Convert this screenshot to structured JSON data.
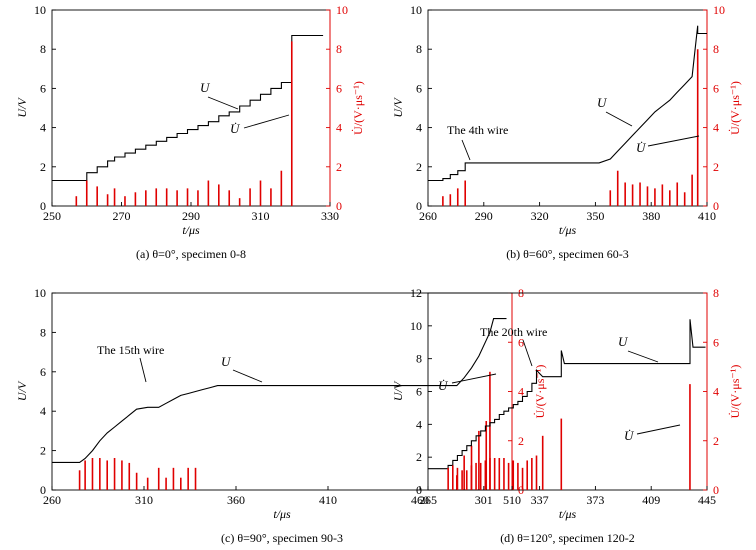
{
  "colors": {
    "voltage": "#000000",
    "rate": "#e00000"
  },
  "chart_data": [
    {
      "type": "line",
      "caption": "(a) θ=0°, specimen 0-8",
      "xlabel": "t/μs",
      "ylabel": "U/V",
      "ylabel2": "U̇/(V·μs⁻¹)",
      "xlim": [
        250,
        330
      ],
      "ylim": [
        0,
        10
      ],
      "y2lim": [
        0,
        10
      ],
      "xticks": [
        "250",
        "270",
        "290",
        "310",
        "330"
      ],
      "yticks": [
        "0",
        "2",
        "4",
        "6",
        "8",
        "10"
      ],
      "y2ticks": [
        "0",
        "2",
        "4",
        "6",
        "8",
        "10"
      ],
      "series": [
        {
          "name": "U",
          "axis": "left",
          "x": [
            250,
            260,
            260,
            263,
            263,
            266,
            266,
            268,
            268,
            271,
            271,
            274,
            274,
            277,
            277,
            280,
            280,
            283,
            283,
            286,
            286,
            289,
            289,
            292,
            292,
            295,
            295,
            298,
            298,
            301,
            301,
            304,
            304,
            307,
            307,
            310,
            310,
            313,
            313,
            316,
            316,
            319,
            319,
            328
          ],
          "y": [
            1.3,
            1.3,
            1.7,
            1.7,
            2.0,
            2.0,
            2.3,
            2.3,
            2.5,
            2.5,
            2.7,
            2.7,
            2.9,
            2.9,
            3.1,
            3.1,
            3.3,
            3.3,
            3.5,
            3.5,
            3.7,
            3.7,
            3.9,
            3.9,
            4.1,
            4.1,
            4.3,
            4.3,
            4.6,
            4.6,
            4.8,
            4.8,
            5.1,
            5.1,
            5.4,
            5.4,
            5.7,
            5.7,
            6.0,
            6.0,
            6.3,
            6.3,
            8.7,
            8.7
          ]
        },
        {
          "name": "U̇",
          "axis": "right",
          "x": [
            257,
            260,
            263,
            266,
            268,
            271,
            274,
            277,
            280,
            283,
            286,
            289,
            292,
            295,
            298,
            301,
            304,
            307,
            310,
            313,
            316,
            319
          ],
          "y": [
            0.5,
            1.3,
            1.0,
            0.6,
            0.9,
            0.5,
            0.7,
            0.8,
            0.9,
            0.9,
            0.8,
            0.9,
            0.8,
            1.3,
            1.1,
            0.8,
            0.4,
            0.9,
            1.3,
            0.9,
            1.8,
            8.4
          ]
        }
      ],
      "annotations": [
        {
          "label": "U",
          "italic": true
        },
        {
          "label": "U̇",
          "italic": true
        }
      ]
    },
    {
      "type": "line",
      "caption": "(b) θ=60°, specimen 60-3",
      "xlabel": "t/μs",
      "ylabel": "U/V",
      "ylabel2": "U̇/(V·μs⁻¹)",
      "xlim": [
        260,
        410
      ],
      "ylim": [
        0,
        10
      ],
      "y2lim": [
        0,
        10
      ],
      "xticks": [
        "260",
        "290",
        "320",
        "350",
        "380",
        "410"
      ],
      "yticks": [
        "0",
        "2",
        "4",
        "6",
        "8",
        "10"
      ],
      "y2ticks": [
        "0",
        "2",
        "4",
        "6",
        "8",
        "10"
      ],
      "series": [
        {
          "name": "U",
          "axis": "left",
          "x": [
            260,
            268,
            268,
            272,
            272,
            276,
            276,
            280,
            280,
            302,
            352,
            358,
            358,
            362,
            362,
            366,
            366,
            370,
            370,
            374,
            374,
            378,
            378,
            382,
            382,
            386,
            386,
            390,
            390,
            394,
            394,
            398,
            398,
            402,
            402,
            405,
            405,
            410
          ],
          "y": [
            1.3,
            1.3,
            1.4,
            1.4,
            1.6,
            1.6,
            1.8,
            1.8,
            2.2,
            2.2,
            2.2,
            2.4,
            2.4,
            2.8,
            2.8,
            3.2,
            3.2,
            3.6,
            3.6,
            4.0,
            4.0,
            4.4,
            4.4,
            4.8,
            4.8,
            5.1,
            5.1,
            5.4,
            5.4,
            5.8,
            5.8,
            6.2,
            6.2,
            6.6,
            6.6,
            9.2,
            8.8,
            8.8
          ]
        },
        {
          "name": "U̇",
          "axis": "right",
          "x": [
            268,
            272,
            276,
            280,
            358,
            362,
            366,
            370,
            374,
            378,
            382,
            386,
            390,
            394,
            398,
            402,
            405
          ],
          "y": [
            0.5,
            0.6,
            0.9,
            1.3,
            0.8,
            1.8,
            1.2,
            1.1,
            1.2,
            1.0,
            0.9,
            1.1,
            0.8,
            1.2,
            0.7,
            1.6,
            8.0
          ]
        }
      ],
      "annotations": [
        {
          "label": "The 4th wire",
          "italic": false
        },
        {
          "label": "U",
          "italic": true
        },
        {
          "label": "U̇",
          "italic": true
        }
      ]
    },
    {
      "type": "line",
      "caption": "(c) θ=90°, specimen 90-3",
      "xlabel": "t/μs",
      "ylabel": "U/V",
      "ylabel2": "U̇/(V·μs⁻¹)",
      "xlim": [
        260,
        510
      ],
      "ylim": [
        0,
        10
      ],
      "y2lim": [
        0,
        8
      ],
      "xticks": [
        "260",
        "310",
        "360",
        "410",
        "460",
        "510"
      ],
      "yticks": [
        "0",
        "2",
        "4",
        "6",
        "8",
        "10"
      ],
      "y2ticks": [
        "0",
        "2",
        "4",
        "6",
        "8"
      ],
      "series": [
        {
          "name": "U",
          "axis": "left",
          "x": [
            260,
            275,
            278,
            282,
            286,
            290,
            294,
            298,
            302,
            306,
            312,
            318,
            322,
            326,
            330,
            334,
            338,
            342,
            346,
            350,
            355,
            480,
            484,
            488,
            492,
            496,
            498,
            500,
            507
          ],
          "y": [
            1.4,
            1.4,
            1.6,
            2.0,
            2.5,
            2.9,
            3.2,
            3.5,
            3.8,
            4.1,
            4.2,
            4.2,
            4.4,
            4.6,
            4.8,
            4.9,
            5.0,
            5.1,
            5.2,
            5.3,
            5.3,
            5.3,
            5.7,
            6.2,
            6.8,
            7.6,
            8.0,
            8.7,
            8.7
          ]
        },
        {
          "name": "U̇",
          "axis": "right",
          "x": [
            275,
            278,
            282,
            286,
            290,
            294,
            298,
            302,
            306,
            312,
            318,
            322,
            326,
            330,
            334,
            338,
            480,
            484,
            488,
            492,
            496,
            498
          ],
          "y": [
            0.8,
            1.2,
            1.3,
            1.3,
            1.2,
            1.3,
            1.2,
            1.1,
            0.7,
            0.5,
            0.9,
            0.5,
            0.9,
            0.5,
            0.9,
            0.9,
            0.6,
            1.4,
            1.8,
            2.4,
            2.8,
            4.8
          ]
        }
      ],
      "annotations": [
        {
          "label": "The 15th wire",
          "italic": false
        },
        {
          "label": "U",
          "italic": true
        },
        {
          "label": "U̇",
          "italic": true
        }
      ]
    },
    {
      "type": "line",
      "caption": "(d) θ=120°, specimen 120-2",
      "xlabel": "t/μs",
      "ylabel": "U/V",
      "ylabel2": "U̇/(V·μs⁻¹)",
      "xlim": [
        265,
        445
      ],
      "ylim": [
        0,
        12
      ],
      "y2lim": [
        0,
        8
      ],
      "xticks": [
        "265",
        "301",
        "337",
        "373",
        "409",
        "445"
      ],
      "yticks": [
        "0",
        "2",
        "4",
        "6",
        "8",
        "10",
        "12"
      ],
      "y2ticks": [
        "0",
        "2",
        "4",
        "6",
        "8"
      ],
      "series": [
        {
          "name": "U",
          "axis": "left",
          "x": [
            265,
            278,
            278,
            281,
            281,
            284,
            284,
            287,
            287,
            290,
            290,
            293,
            293,
            296,
            296,
            299,
            299,
            302,
            302,
            305,
            305,
            308,
            308,
            311,
            311,
            314,
            314,
            317,
            317,
            320,
            320,
            323,
            323,
            326,
            326,
            329,
            329,
            332,
            332,
            335,
            335,
            339,
            339,
            342,
            342,
            351,
            351,
            353,
            353,
            434,
            434,
            436,
            436,
            444
          ],
          "y": [
            1.3,
            1.3,
            1.5,
            1.5,
            1.8,
            1.8,
            2.1,
            2.1,
            2.4,
            2.4,
            2.7,
            2.7,
            3.0,
            3.0,
            3.3,
            3.3,
            3.6,
            3.6,
            3.9,
            3.9,
            4.1,
            4.1,
            4.3,
            4.3,
            4.6,
            4.6,
            4.8,
            4.8,
            5.0,
            5.0,
            5.2,
            5.2,
            5.4,
            5.4,
            5.7,
            5.7,
            6.0,
            6.0,
            6.5,
            6.5,
            7.3,
            6.9,
            6.9,
            6.9,
            6.9,
            6.9,
            8.5,
            7.7,
            7.7,
            7.7,
            10.4,
            8.7,
            8.7,
            8.7
          ]
        },
        {
          "name": "U̇",
          "axis": "right",
          "x": [
            278,
            281,
            284,
            287,
            290,
            293,
            296,
            299,
            302,
            305,
            308,
            311,
            314,
            317,
            320,
            323,
            326,
            329,
            332,
            335,
            339,
            351,
            434
          ],
          "y": [
            0.9,
            1.0,
            0.9,
            0.8,
            0.8,
            1.0,
            1.1,
            1.1,
            1.2,
            1.3,
            1.3,
            1.3,
            1.3,
            1.1,
            1.2,
            1.1,
            0.9,
            1.2,
            1.3,
            1.4,
            2.2,
            2.9,
            4.3
          ]
        }
      ],
      "annotations": [
        {
          "label": "The 20th wire",
          "italic": false
        },
        {
          "label": "U",
          "italic": true
        },
        {
          "label": "U̇",
          "italic": true
        }
      ]
    }
  ]
}
